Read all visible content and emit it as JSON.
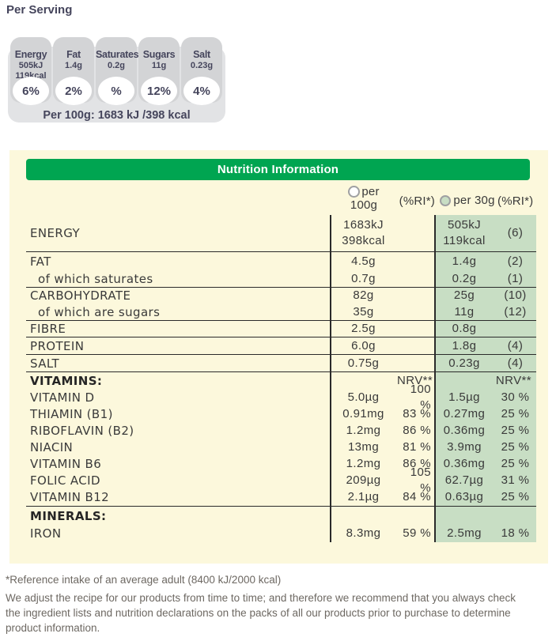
{
  "per_serving": {
    "title": "Per Serving",
    "badges": [
      {
        "label": "Energy",
        "values": [
          "505kJ",
          "119kcal"
        ],
        "percent": "6%"
      },
      {
        "label": "Fat",
        "values": [
          "1.4g"
        ],
        "percent": "2%"
      },
      {
        "label": "Saturates",
        "values": [
          "0.2g"
        ],
        "percent": "%"
      },
      {
        "label": "Sugars",
        "values": [
          "11g"
        ],
        "percent": "12%"
      },
      {
        "label": "Salt",
        "values": [
          "0.23g"
        ],
        "percent": "4%"
      }
    ],
    "per_100g_summary": "Per 100g: 1683 kJ /398 kcal"
  },
  "nutrition_table": {
    "title": "Nutrition Information",
    "columns": {
      "per100_line1": "per",
      "per100_line2": "100g",
      "ri100_label": "(%RI*)",
      "per30_label": "per 30g",
      "ri30_label": "(%RI*)"
    },
    "radios": {
      "per100_selected": false,
      "per30_selected": true
    },
    "rows": [
      {
        "label": "ENERGY",
        "per100": [
          "1683kJ",
          "398kcal"
        ],
        "ri100": "",
        "per30": [
          "505kJ",
          "119kcal"
        ],
        "ri30": "(6)",
        "tall": true
      },
      {
        "label": "FAT",
        "per100": "4.5g",
        "ri100": "",
        "per30": "1.4g",
        "ri30": "(2)",
        "divider": true
      },
      {
        "label": "of which saturates",
        "indent": true,
        "per100": "0.7g",
        "ri100": "",
        "per30": "0.2g",
        "ri30": "(1)"
      },
      {
        "label": "CARBOHYDRATE",
        "per100": "82g",
        "ri100": "",
        "per30": "25g",
        "ri30": "(10)",
        "divider": true
      },
      {
        "label": "of which are sugars",
        "indent": true,
        "per100": "35g",
        "ri100": "",
        "per30": "11g",
        "ri30": "(12)"
      },
      {
        "label": "FIBRE",
        "per100": "2.5g",
        "ri100": "",
        "per30": "0.8g",
        "ri30": "",
        "divider": true
      },
      {
        "label": "PROTEIN",
        "per100": "6.0g",
        "ri100": "",
        "per30": "1.8g",
        "ri30": "(4)",
        "divider": true
      },
      {
        "label": "SALT",
        "per100": "0.75g",
        "ri100": "",
        "per30": "0.23g",
        "ri30": "(4)",
        "divider": true
      },
      {
        "label": "VITAMINS:",
        "bold": true,
        "per100": "",
        "ri100": "NRV**",
        "per30": "",
        "ri30": "NRV**",
        "divider": true,
        "ri30_right": true
      },
      {
        "label": "VITAMIN D",
        "per100": "5.0µg",
        "ri100": "100 %",
        "per30": "1.5µg",
        "ri30": "30 %"
      },
      {
        "label": "THIAMIN (B1)",
        "per100": "0.91mg",
        "ri100": "83 %",
        "per30": "0.27mg",
        "ri30": "25 %"
      },
      {
        "label": "RIBOFLAVIN (B2)",
        "per100": "1.2mg",
        "ri100": "86 %",
        "per30": "0.36mg",
        "ri30": "25 %"
      },
      {
        "label": "NIACIN",
        "per100": "13mg",
        "ri100": "81 %",
        "per30": "3.9mg",
        "ri30": "25 %"
      },
      {
        "label": "VITAMIN B6",
        "per100": "1.2mg",
        "ri100": "86 %",
        "per30": "0.36mg",
        "ri30": "25 %"
      },
      {
        "label": "FOLIC ACID",
        "per100": "209µg",
        "ri100": "105 %",
        "per30": "62.7µg",
        "ri30": "31 %"
      },
      {
        "label": "VITAMIN B12",
        "per100": "2.1µg",
        "ri100": "84 %",
        "per30": "0.63µg",
        "ri30": "25 %"
      },
      {
        "label": "MINERALS:",
        "bold": true,
        "per100": "",
        "ri100": "",
        "per30": "",
        "ri30": "",
        "divider": true
      },
      {
        "label": "IRON",
        "per100": "8.3mg",
        "ri100": "59 %",
        "per30": "2.5mg",
        "ri30": "18 %"
      }
    ]
  },
  "footnotes": {
    "reference": "*Reference intake of an average adult (8400 kJ/2000 kcal)",
    "disclaimer": "We adjust the recipe for our products from time to time; and therefore we recommend that you always check the ingredient lists and nutrition declarations on the packs of all our products prior to purchase to determine product information."
  },
  "colors": {
    "header_green": "#00a551",
    "highlight_green": "#c8dec4",
    "panel_yellow": "#fcf8dc",
    "badge_navy": "#45455c",
    "gda_panel_gray": "#e2e3e5",
    "gda_badge_gray": "#d3d4d6",
    "table_text": "#3a3a3a",
    "footnote_gray": "#6d6862"
  }
}
